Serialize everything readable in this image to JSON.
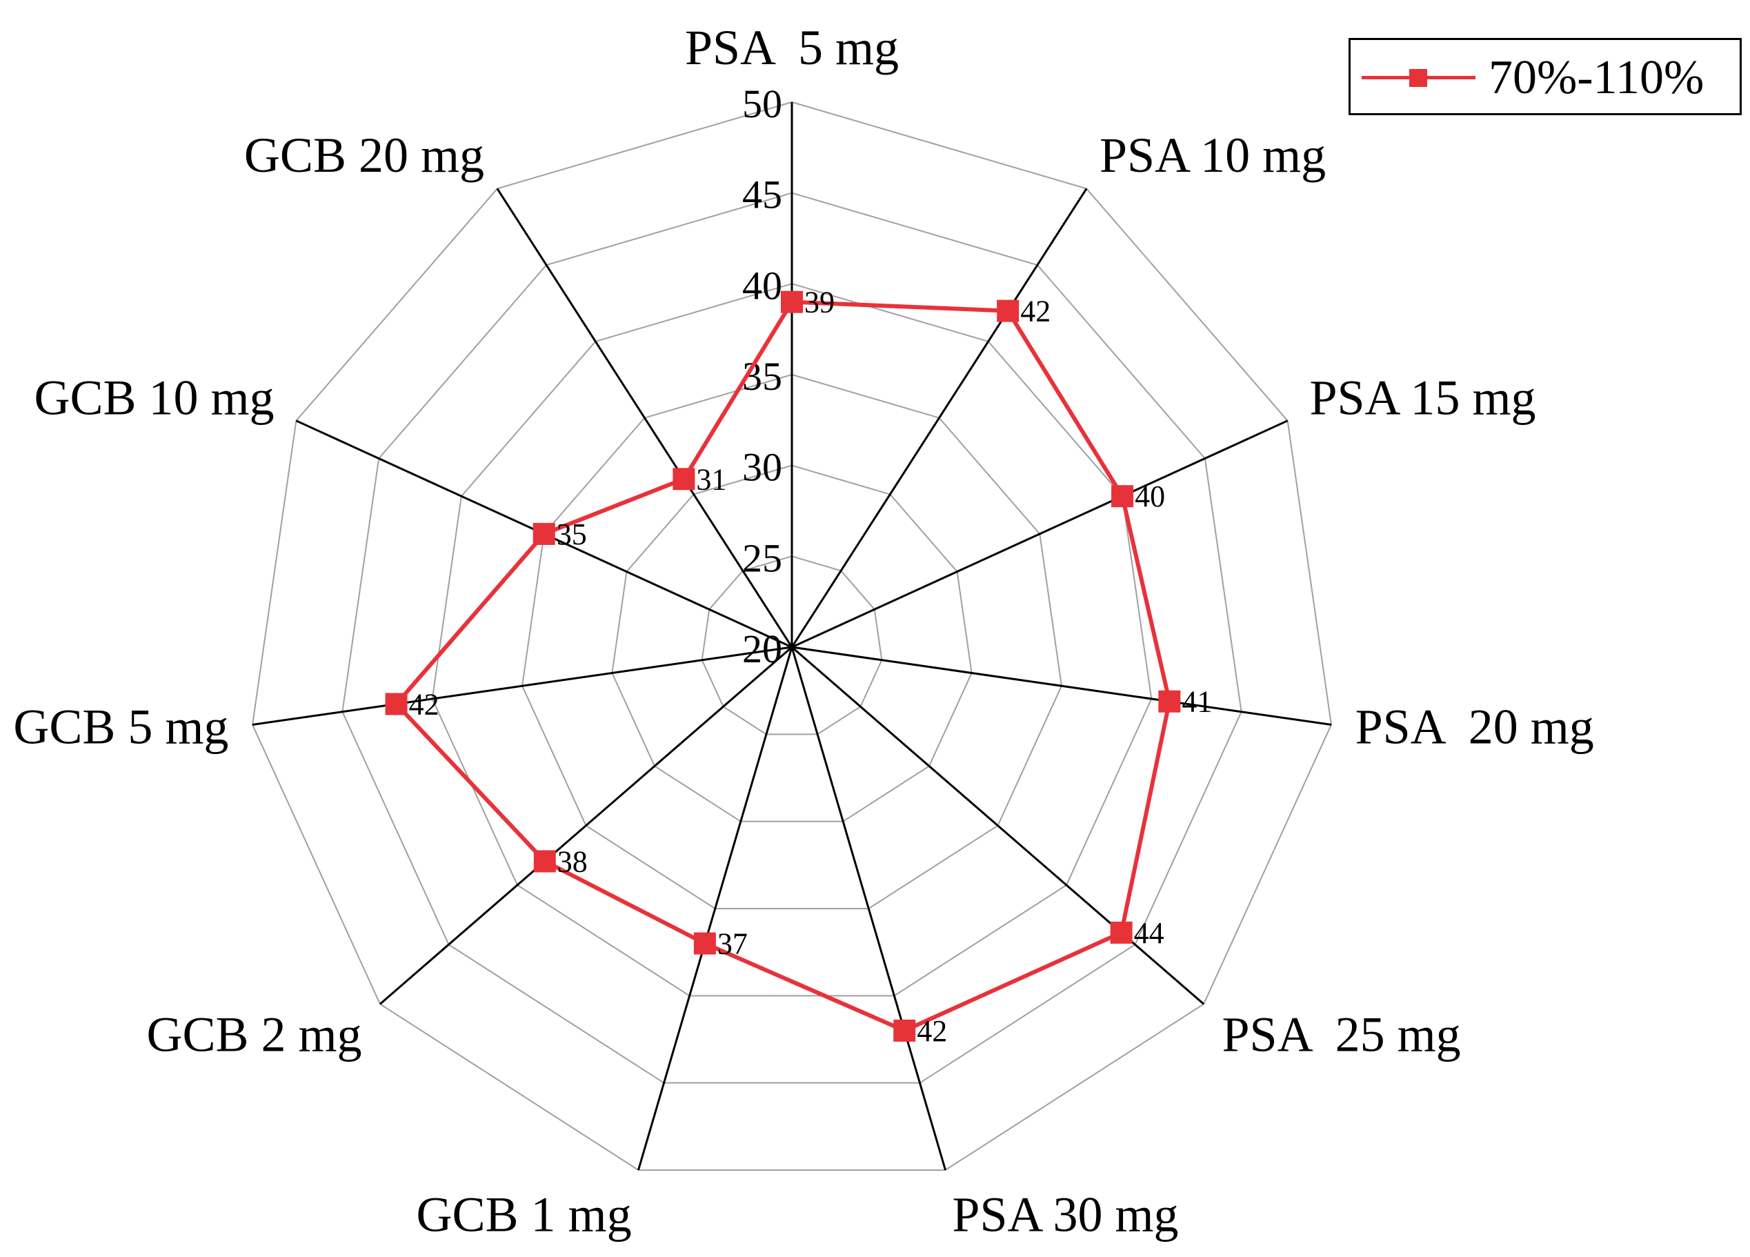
{
  "chart_data": {
    "type": "radar",
    "categories": [
      "PSA  5 mg",
      "PSA 10 mg",
      "PSA 15 mg",
      "PSA  20 mg",
      "PSA  25 mg",
      "PSA 30 mg",
      "GCB 1 mg",
      "GCB 2 mg",
      "GCB 5 mg",
      "GCB 10 mg",
      "GCB 20 mg"
    ],
    "series": [
      {
        "name": "70%-110%",
        "values": [
          39,
          42,
          40,
          41,
          44,
          42,
          37,
          38,
          42,
          35,
          31
        ],
        "color": "#e8323a"
      }
    ],
    "radial_ticks": [
      20,
      25,
      30,
      35,
      40,
      45,
      50
    ],
    "rlim": [
      20,
      50
    ],
    "legend": "top-right"
  }
}
